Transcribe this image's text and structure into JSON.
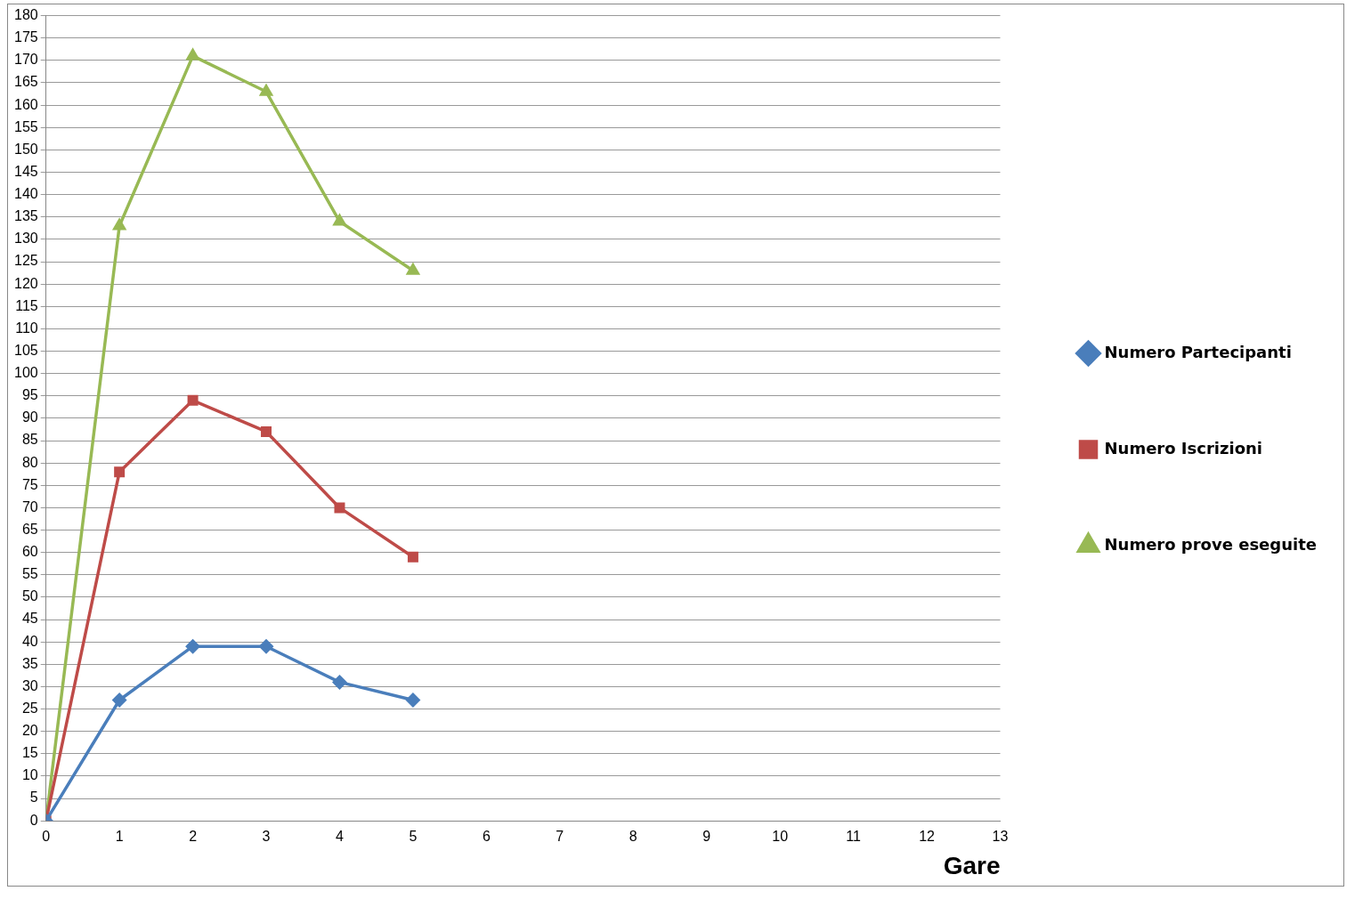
{
  "chart_data": {
    "type": "line",
    "xlabel": "Gare",
    "x": [
      0,
      1,
      2,
      3,
      4,
      5
    ],
    "series": [
      {
        "name": "Numero Partecipanti",
        "color": "#4a7ebb",
        "marker": "diamond",
        "values": [
          0,
          27,
          39,
          39,
          31,
          27
        ]
      },
      {
        "name": "Numero Iscrizioni",
        "color": "#be4b48",
        "marker": "square",
        "values": [
          0,
          78,
          94,
          87,
          70,
          59
        ]
      },
      {
        "name": "Numero prove eseguite",
        "color": "#98b954",
        "marker": "triangle",
        "values": [
          0,
          133,
          171,
          163,
          134,
          123
        ]
      }
    ],
    "xlim": [
      0,
      13
    ],
    "xticks": [
      0,
      1,
      2,
      3,
      4,
      5,
      6,
      7,
      8,
      9,
      10,
      11,
      12,
      13
    ],
    "ylim": [
      0,
      180
    ],
    "yticks": [
      0,
      5,
      10,
      15,
      20,
      25,
      30,
      35,
      40,
      45,
      50,
      55,
      60,
      65,
      70,
      75,
      80,
      85,
      90,
      95,
      100,
      105,
      110,
      115,
      120,
      125,
      130,
      135,
      140,
      145,
      150,
      155,
      160,
      165,
      170,
      175,
      180
    ],
    "grid": "y",
    "legend": "right",
    "line_style": "solid"
  }
}
